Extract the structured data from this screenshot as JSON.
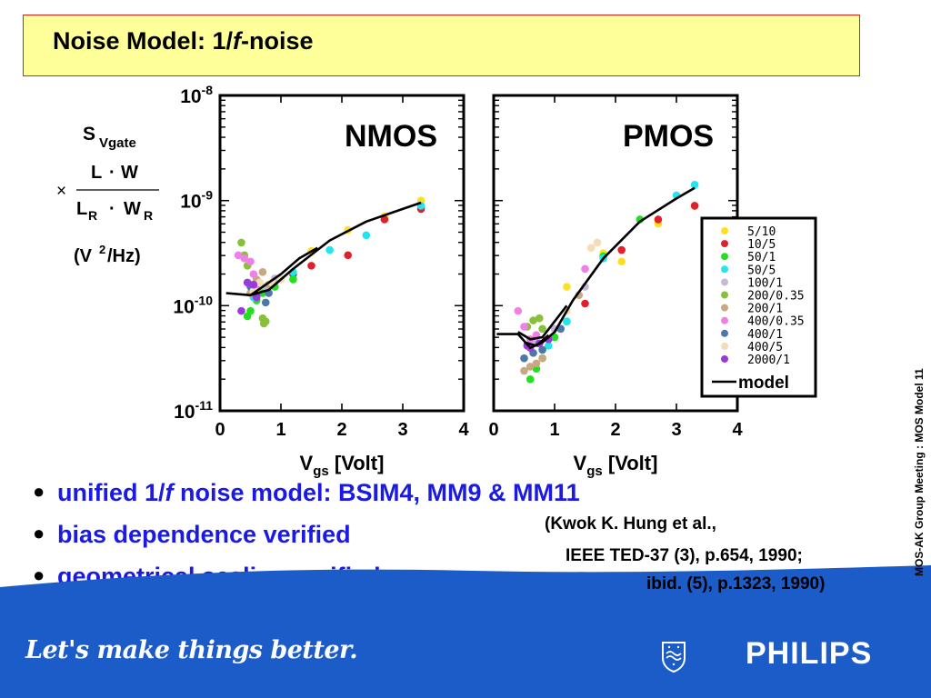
{
  "slide": {
    "title_prefix": "Noise Model: 1/",
    "title_italic": "f",
    "title_suffix": "-noise",
    "side_label": "MOS-AK Group Meeting : MOS Model 11",
    "footer_slogan": "Let's make things better.",
    "footer_brand": "PHILIPS",
    "footer_shield_icon": "philips-shield-icon"
  },
  "ylabel": {
    "s": "S",
    "vgate": "Vgate",
    "times": "×",
    "num_l": "L",
    "num_dot": "·",
    "num_w": "W",
    "den_l": "L",
    "den_r1": "R",
    "den_dot": "·",
    "den_w": "W",
    "den_r2": "R",
    "unit_open": "(V",
    "unit_sup": "2",
    "unit_close": "/Hz)"
  },
  "bullets": [
    {
      "pre": "unified 1/",
      "it": "f",
      "post": " noise model: BSIM4, MM9 & MM11"
    },
    {
      "pre": "bias dependence verified",
      "it": "",
      "post": ""
    },
    {
      "pre": "geometrical scaling verified",
      "it": "",
      "post": ""
    }
  ],
  "reference": {
    "line1": "(Kwok K. Hung et al.,",
    "line2": "IEEE TED-37 (3), p.654, 1990;",
    "line3": "ibid. (5), p.1323, 1990)"
  },
  "colors": {
    "bullet_text": "#1a1ae0",
    "title_background": "#ffff99",
    "title_border": "#e02020",
    "footer_blue": "#1b5cc8"
  },
  "chart_data": [
    {
      "type": "scatter",
      "title": "NMOS",
      "xlabel_main": "V",
      "xlabel_sub": "gs",
      "xlabel_unit": " [Volt]",
      "xlim": [
        0,
        4
      ],
      "x_ticks": [
        "0",
        "1",
        "2",
        "3",
        "4"
      ],
      "ylog": true,
      "ylim_exp": [
        -11,
        -8
      ],
      "y_ticks": [
        {
          "base": "10",
          "exp": "-8"
        },
        {
          "base": "10",
          "exp": "-9"
        },
        {
          "base": "10",
          "exp": "-10"
        },
        {
          "base": "10",
          "exp": "-11"
        }
      ],
      "series": [
        {
          "name": "5/10",
          "color": "#ffe020",
          "points": [
            [
              0.6,
              -9.88
            ],
            [
              1.0,
              -9.75
            ],
            [
              1.5,
              -9.48
            ],
            [
              2.1,
              -9.28
            ],
            [
              2.7,
              -9.15
            ],
            [
              3.3,
              -9.0
            ]
          ]
        },
        {
          "name": "10/5",
          "color": "#e0202a",
          "points": [
            [
              1.2,
              -9.7
            ],
            [
              1.5,
              -9.62
            ],
            [
              2.1,
              -9.52
            ],
            [
              2.7,
              -9.18
            ],
            [
              3.3,
              -9.08
            ]
          ]
        },
        {
          "name": "50/1",
          "color": "#20e020",
          "points": [
            [
              0.45,
              -10.1
            ],
            [
              0.5,
              -10.05
            ],
            [
              0.6,
              -9.95
            ],
            [
              0.7,
              -9.88
            ],
            [
              0.9,
              -9.82
            ],
            [
              1.2,
              -9.75
            ]
          ]
        },
        {
          "name": "50/5",
          "color": "#20e6ee",
          "points": [
            [
              0.55,
              -9.92
            ],
            [
              1.2,
              -9.68
            ],
            [
              1.8,
              -9.47
            ],
            [
              2.4,
              -9.33
            ],
            [
              3.3,
              -9.05
            ]
          ]
        },
        {
          "name": "100/1",
          "color": "#c8b8d8",
          "points": [
            [
              0.45,
              -9.78
            ],
            [
              0.5,
              -9.88
            ],
            [
              0.75,
              -9.82
            ],
            [
              0.9,
              -9.74
            ]
          ]
        },
        {
          "name": "200/0.35",
          "color": "#88c03a",
          "points": [
            [
              0.35,
              -9.4
            ],
            [
              0.4,
              -9.52
            ],
            [
              0.45,
              -9.62
            ],
            [
              0.7,
              -10.12
            ],
            [
              0.72,
              -10.17
            ],
            [
              0.75,
              -10.15
            ]
          ]
        },
        {
          "name": "200/1",
          "color": "#c8a882",
          "points": [
            [
              0.5,
              -9.88
            ],
            [
              0.6,
              -9.75
            ],
            [
              0.7,
              -9.68
            ],
            [
              0.8,
              -9.8
            ]
          ]
        },
        {
          "name": "400/0.35",
          "color": "#ee80e8",
          "points": [
            [
              0.3,
              -9.52
            ],
            [
              0.4,
              -9.55
            ],
            [
              0.5,
              -9.58
            ],
            [
              0.55,
              -9.7
            ],
            [
              0.6,
              -9.8
            ]
          ]
        },
        {
          "name": "400/1",
          "color": "#4a78aa",
          "points": [
            [
              0.5,
              -9.82
            ],
            [
              0.6,
              -9.9
            ],
            [
              0.75,
              -9.97
            ],
            [
              0.8,
              -9.88
            ]
          ]
        },
        {
          "name": "400/5",
          "color": "#f4dcb4",
          "points": [
            [
              0.55,
              -9.86
            ],
            [
              0.65,
              -9.78
            ],
            [
              0.85,
              -9.78
            ],
            [
              1.0,
              -9.75
            ]
          ]
        },
        {
          "name": "2000/1",
          "color": "#9a3ad8",
          "points": [
            [
              0.35,
              -10.05
            ],
            [
              0.45,
              -9.78
            ],
            [
              0.55,
              -9.8
            ],
            [
              0.6,
              -9.92
            ]
          ]
        }
      ],
      "model": [
        [
          [
            0.1,
            -9.88
          ],
          [
            0.5,
            -9.9
          ],
          [
            0.8,
            -9.85
          ],
          [
            1.2,
            -9.65
          ],
          [
            1.8,
            -9.38
          ],
          [
            2.4,
            -9.2
          ],
          [
            3.0,
            -9.08
          ],
          [
            3.3,
            -9.02
          ]
        ],
        [
          [
            0.5,
            -9.9
          ],
          [
            0.8,
            -9.78
          ],
          [
            1.0,
            -9.7
          ],
          [
            1.3,
            -9.55
          ],
          [
            1.6,
            -9.45
          ]
        ]
      ]
    },
    {
      "type": "scatter",
      "title": "PMOS",
      "xlabel_main": "V",
      "xlabel_sub": "gs",
      "xlabel_unit": " [Volt]",
      "xlim": [
        0,
        4
      ],
      "x_ticks": [
        "0",
        "1",
        "2",
        "3",
        "4"
      ],
      "ylog": true,
      "ylim_exp": [
        -11,
        -8
      ],
      "y_ticks": [],
      "legend_position": "right",
      "series": [
        {
          "name": "5/10",
          "color": "#ffe020",
          "points": [
            [
              1.2,
              -9.82
            ],
            [
              1.8,
              -9.5
            ],
            [
              2.1,
              -9.58
            ],
            [
              2.7,
              -9.22
            ],
            [
              3.3,
              -9.05
            ]
          ]
        },
        {
          "name": "10/5",
          "color": "#e0202a",
          "points": [
            [
              1.5,
              -9.98
            ],
            [
              2.1,
              -9.47
            ],
            [
              2.7,
              -9.18
            ],
            [
              3.3,
              -9.05
            ]
          ]
        },
        {
          "name": "50/1",
          "color": "#20e020",
          "points": [
            [
              0.6,
              -10.7
            ],
            [
              0.7,
              -10.6
            ],
            [
              0.8,
              -10.5
            ],
            [
              1.0,
              -10.3
            ],
            [
              1.2,
              -10.15
            ],
            [
              1.8,
              -9.53
            ],
            [
              2.4,
              -9.18
            ]
          ]
        },
        {
          "name": "50/5",
          "color": "#20e6ee",
          "points": [
            [
              0.9,
              -10.38
            ],
            [
              1.2,
              -10.15
            ],
            [
              1.8,
              -9.55
            ],
            [
              3.0,
              -8.95
            ],
            [
              3.3,
              -8.85
            ]
          ]
        },
        {
          "name": "100/1",
          "color": "#c8b8d8",
          "points": [
            [
              0.7,
              -10.35
            ],
            [
              1.0,
              -10.22
            ],
            [
              1.5,
              -9.82
            ]
          ]
        },
        {
          "name": "200/0.35",
          "color": "#88c03a",
          "points": [
            [
              0.55,
              -10.2
            ],
            [
              0.65,
              -10.14
            ],
            [
              0.75,
              -10.12
            ],
            [
              0.8,
              -10.22
            ]
          ]
        },
        {
          "name": "200/1",
          "color": "#c8a882",
          "points": [
            [
              0.5,
              -10.62
            ],
            [
              0.6,
              -10.58
            ],
            [
              0.7,
              -10.55
            ],
            [
              0.8,
              -10.5
            ],
            [
              1.1,
              -10.22
            ],
            [
              1.4,
              -9.9
            ]
          ]
        },
        {
          "name": "400/0.35",
          "color": "#ee80e8",
          "points": [
            [
              0.4,
              -10.05
            ],
            [
              0.5,
              -10.2
            ],
            [
              0.6,
              -10.32
            ],
            [
              0.7,
              -10.28
            ],
            [
              1.5,
              -9.65
            ]
          ]
        },
        {
          "name": "400/1",
          "color": "#4a78aa",
          "points": [
            [
              0.5,
              -10.5
            ],
            [
              0.65,
              -10.45
            ],
            [
              0.8,
              -10.42
            ],
            [
              1.1,
              -10.22
            ]
          ]
        },
        {
          "name": "400/5",
          "color": "#f4dcb4",
          "points": [
            [
              0.9,
              -10.32
            ],
            [
              1.2,
              -10.05
            ],
            [
              1.6,
              -9.45
            ],
            [
              1.7,
              -9.4
            ]
          ]
        },
        {
          "name": "2000/1",
          "color": "#9a3ad8",
          "points": [
            [
              0.55,
              -10.38
            ],
            [
              0.6,
              -10.4
            ],
            [
              0.75,
              -10.36
            ],
            [
              0.9,
              -10.32
            ]
          ]
        }
      ],
      "model": [
        [
          [
            0.05,
            -10.27
          ],
          [
            0.4,
            -10.27
          ],
          [
            0.6,
            -10.4
          ],
          [
            0.8,
            -10.35
          ],
          [
            1.0,
            -10.25
          ],
          [
            1.3,
            -9.95
          ],
          [
            1.8,
            -9.55
          ],
          [
            2.4,
            -9.2
          ],
          [
            3.0,
            -8.98
          ],
          [
            3.3,
            -8.88
          ]
        ],
        [
          [
            0.4,
            -10.25
          ],
          [
            0.6,
            -10.32
          ],
          [
            0.8,
            -10.3
          ],
          [
            1.0,
            -10.15
          ],
          [
            1.2,
            -10.0
          ]
        ],
        [
          [
            0.5,
            -10.35
          ],
          [
            0.7,
            -10.38
          ],
          [
            0.9,
            -10.28
          ]
        ]
      ],
      "model_label": "model"
    }
  ]
}
